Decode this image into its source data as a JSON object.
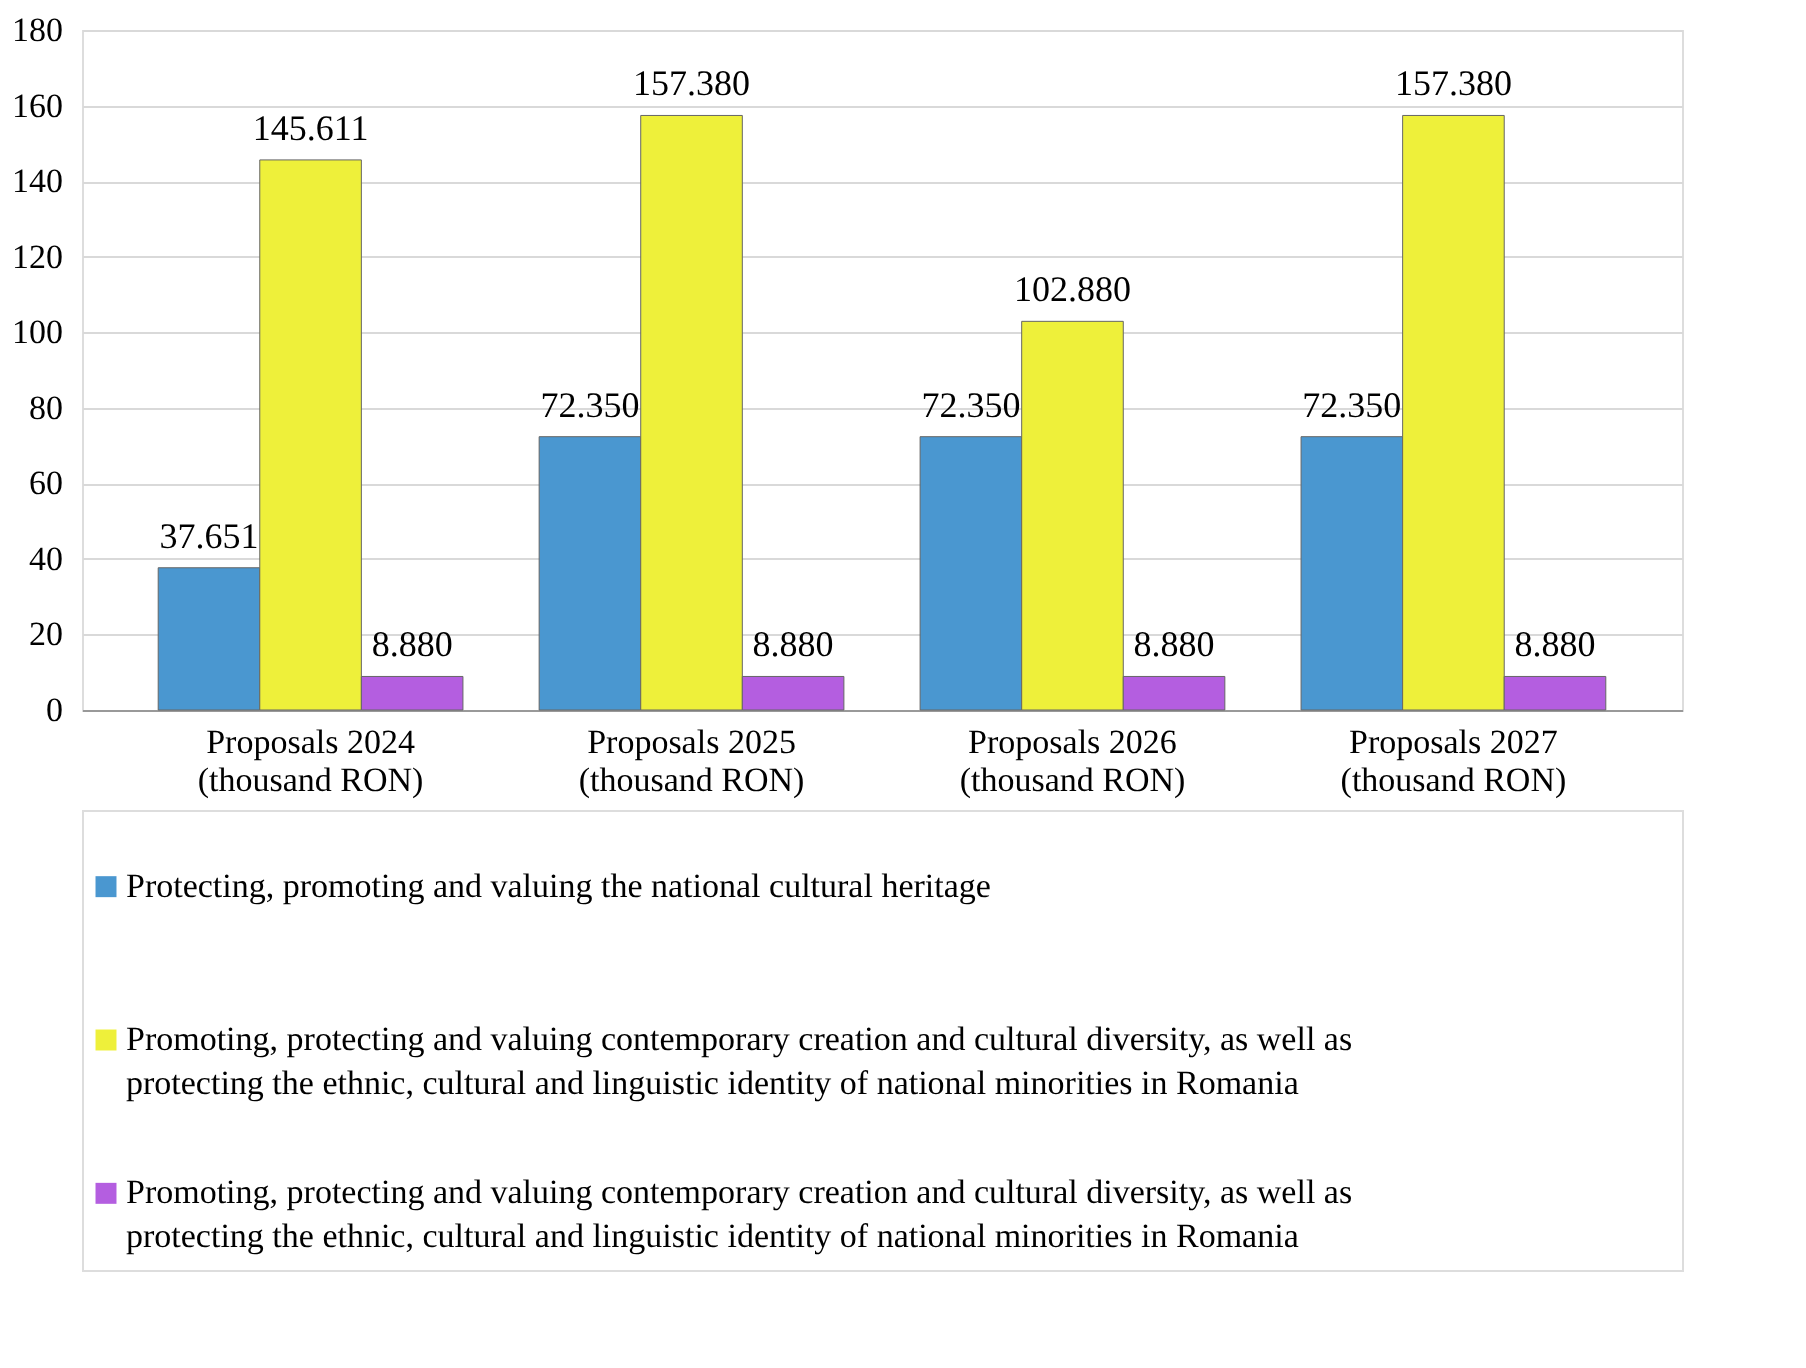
{
  "chart_data": {
    "type": "bar",
    "categories": [
      "Proposals 2024\n(thousand RON)",
      "Proposals 2025\n(thousand RON)",
      "Proposals 2026\n(thousand RON)",
      "Proposals 2027\n(thousand RON)"
    ],
    "series": [
      {
        "name": "Protecting, promoting and valuing the national cultural heritage",
        "color": "#4a97d0",
        "values": [
          37.651,
          72.35,
          72.35,
          72.35
        ],
        "value_labels": [
          "37.651",
          "72.350",
          "72.350",
          "72.350"
        ]
      },
      {
        "name": "Promoting, protecting and valuing contemporary creation and cultural diversity, as well as protecting the ethnic, cultural and linguistic identity of national minorities in Romania",
        "color": "#eef03a",
        "values": [
          145.611,
          157.38,
          102.88,
          157.38
        ],
        "value_labels": [
          "145.611",
          "157.380",
          "102.880",
          "157.380"
        ]
      },
      {
        "name": "Promoting, protecting and valuing contemporary creation and cultural diversity, as well as protecting the ethnic, cultural and linguistic identity of national minorities in Romania",
        "color": "#b45ee0",
        "values": [
          8.88,
          8.88,
          8.88,
          8.88
        ],
        "value_labels": [
          "8.880",
          "8.880",
          "8.880",
          "8.880"
        ]
      }
    ],
    "ylim": [
      0,
      180
    ],
    "yticks": [
      0,
      20,
      40,
      60,
      80,
      100,
      120,
      140,
      160,
      180
    ],
    "grid": "y",
    "legend": "bottom"
  }
}
